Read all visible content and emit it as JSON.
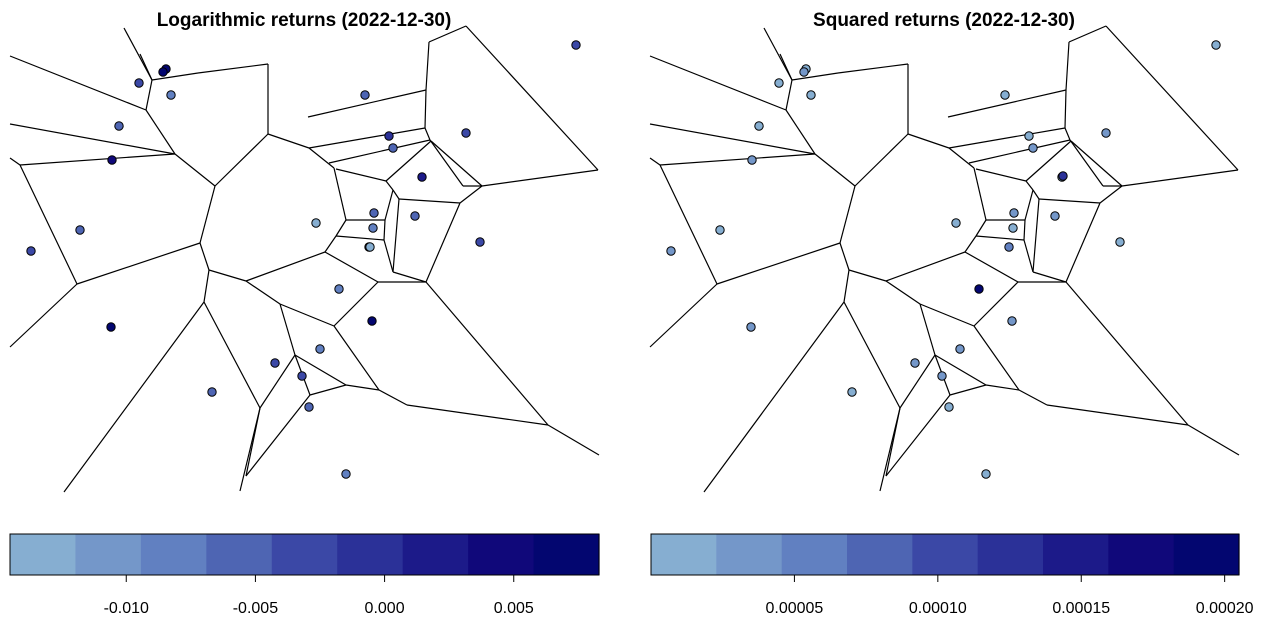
{
  "chart_data": [
    {
      "type": "voronoi-map",
      "title": "Logarithmic returns (2022-12-30)",
      "colorbar": {
        "min": -0.0145,
        "max": 0.0083,
        "ticks": [
          -0.01,
          -0.005,
          0.0,
          0.005
        ],
        "tick_labels": [
          "-0.010",
          "-0.005",
          "0.000",
          "0.005"
        ],
        "colors": [
          "#86aed1",
          "#7497c9",
          "#6180c1",
          "#4e65b3",
          "#3b48a6",
          "#2b3198",
          "#1c1a89",
          "#10087a",
          "#030670"
        ]
      },
      "points": [
        {
          "id": "A1",
          "value": 0.0075
        },
        {
          "id": "A2",
          "value": 0.0068
        },
        {
          "id": "A3",
          "value": -0.002
        },
        {
          "id": "A4",
          "value": -0.007
        },
        {
          "id": "A5",
          "value": -0.0045
        },
        {
          "id": "A6",
          "value": -0.0055
        },
        {
          "id": "A7",
          "value": 0.005
        },
        {
          "id": "A8",
          "value": -0.001
        },
        {
          "id": "A9",
          "value": -0.006
        },
        {
          "id": "A10",
          "value": -0.003
        },
        {
          "id": "A11",
          "value": 0.001
        },
        {
          "id": "A12",
          "value": -0.005
        },
        {
          "id": "A13",
          "value": -0.0045
        },
        {
          "id": "A14",
          "value": -0.012
        },
        {
          "id": "A15",
          "value": -0.007
        },
        {
          "id": "A16",
          "value": -0.006
        },
        {
          "id": "A17",
          "value": -0.003
        },
        {
          "id": "A18",
          "value": -0.006
        },
        {
          "id": "A19",
          "value": -0.003
        },
        {
          "id": "A20",
          "value": -0.0085
        },
        {
          "id": "A21",
          "value": 0.006
        },
        {
          "id": "A22",
          "value": 0.0065
        },
        {
          "id": "A23",
          "value": -0.0075
        },
        {
          "id": "A24",
          "value": -0.004
        },
        {
          "id": "A25",
          "value": -0.003
        },
        {
          "id": "A26",
          "value": -0.0065
        },
        {
          "id": "A27",
          "value": -0.006
        },
        {
          "id": "A28",
          "value": -0.008
        },
        {
          "id": "A29",
          "value": -0.0035
        },
        {
          "id": "A30",
          "value": -0.012
        }
      ]
    },
    {
      "type": "voronoi-map",
      "title": "Squared returns (2022-12-30)",
      "colorbar": {
        "min": 0.0,
        "max": 0.000205,
        "ticks": [
          5e-05,
          0.0001,
          0.00015,
          0.0002
        ],
        "tick_labels": [
          "0.00005",
          "0.00010",
          "0.00015",
          "0.00020"
        ],
        "colors": [
          "#86aed1",
          "#7497c9",
          "#6180c1",
          "#4e65b3",
          "#3b48a6",
          "#2b3198",
          "#1c1a89",
          "#10087a",
          "#030670"
        ]
      },
      "points": [
        {
          "id": "A1",
          "value": 5e-06
        },
        {
          "id": "A2",
          "value": 4e-05
        },
        {
          "id": "A3",
          "value": 1.5e-05
        },
        {
          "id": "A4",
          "value": 1e-05
        },
        {
          "id": "A5",
          "value": 2e-05
        },
        {
          "id": "A6",
          "value": 1.8e-05
        },
        {
          "id": "A7",
          "value": 2.5e-05
        },
        {
          "id": "A8",
          "value": 2.2e-05
        },
        {
          "id": "A9",
          "value": 4e-05
        },
        {
          "id": "A10",
          "value": 3e-05
        },
        {
          "id": "A11",
          "value": 1.8e-05
        },
        {
          "id": "A12",
          "value": 3.5e-05
        },
        {
          "id": "A13",
          "value": 2.8e-05
        },
        {
          "id": "A14",
          "value": 1.5e-05
        },
        {
          "id": "A15",
          "value": 1e-05
        },
        {
          "id": "A16",
          "value": 8e-06
        },
        {
          "id": "A17",
          "value": 3e-05
        },
        {
          "id": "A18",
          "value": 6e-05
        },
        {
          "id": "A19",
          "value": 1.5e-05
        },
        {
          "id": "A20",
          "value": 0.000185
        },
        {
          "id": "A21",
          "value": 2.5e-05
        },
        {
          "id": "A22",
          "value": 3.5e-05
        },
        {
          "id": "A23",
          "value": 4.5e-05
        },
        {
          "id": "A24",
          "value": 2.8e-05
        },
        {
          "id": "A25",
          "value": 3e-05
        },
        {
          "id": "A26",
          "value": 1.5e-05
        },
        {
          "id": "A27",
          "value": 1e-05
        },
        {
          "id": "A28",
          "value": 1.8e-05
        },
        {
          "id": "A29",
          "value": 2.2e-05
        },
        {
          "id": "A30",
          "value": 0.00012
        }
      ]
    }
  ]
}
